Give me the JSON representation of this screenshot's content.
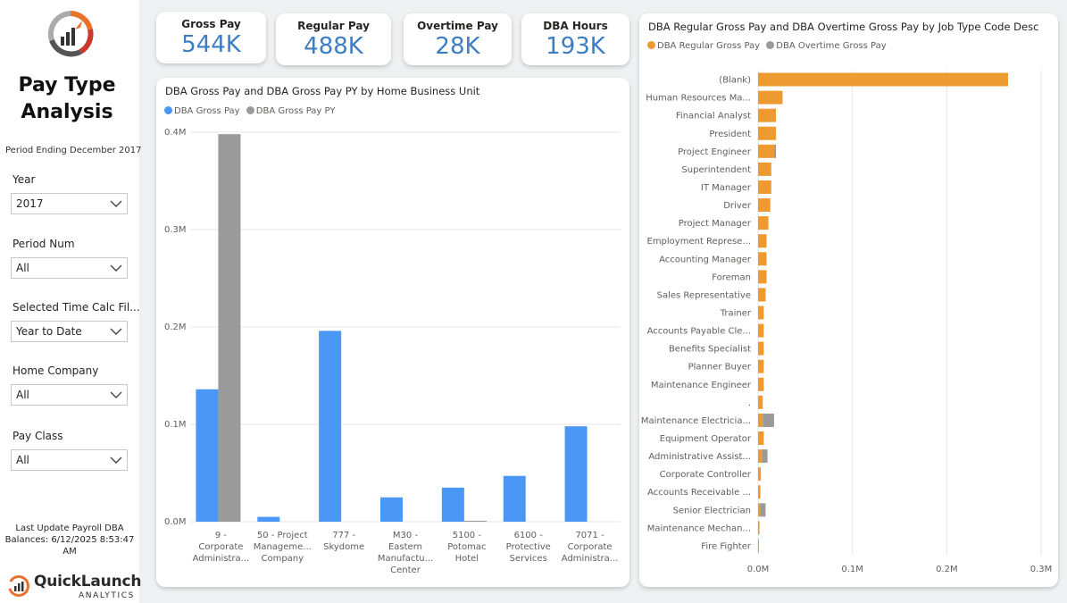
{
  "sidebar": {
    "title_line1": "Pay Type",
    "title_line2": "Analysis",
    "period": "Period Ending December 2017",
    "slicers": [
      {
        "label": "Year",
        "value": "2017"
      },
      {
        "label": "Period Num",
        "value": "All"
      },
      {
        "label": "Selected Time Calc Fil...",
        "value": "Year to Date"
      },
      {
        "label": "Home Company",
        "value": "All"
      },
      {
        "label": "Pay Class",
        "value": "All"
      }
    ],
    "last_update_line1": "Last Update Payroll DBA",
    "last_update_line2": "Balances: 6/12/2025 8:53:47 AM",
    "brand_name": "QuickLaunch",
    "brand_sub": "ANALYTICS"
  },
  "kpis": [
    {
      "label": "Gross Pay",
      "value": "544K"
    },
    {
      "label": "Regular Pay",
      "value": "488K"
    },
    {
      "label": "Overtime Pay",
      "value": "28K"
    },
    {
      "label": "DBA Hours",
      "value": "193K"
    }
  ],
  "colors": {
    "blue": "#4a97f5",
    "gray": "#9a9a9a",
    "orange": "#ed9a32",
    "kpi": "#3d7ec2"
  },
  "chart_data": [
    {
      "type": "bar",
      "title": "DBA Gross Pay and DBA Gross Pay PY by Home Business Unit",
      "categories": [
        [
          "9 -",
          "Corporate",
          "Administra..."
        ],
        [
          "50 - Project",
          "Manageme...",
          "Company"
        ],
        [
          "777 -",
          "Skydome"
        ],
        [
          "M30 -",
          "Eastern",
          "Manufactu...",
          "Center"
        ],
        [
          "5100 -",
          "Potomac",
          "Hotel"
        ],
        [
          "6100 -",
          "Protective",
          "Services"
        ],
        [
          "7071 -",
          "Corporate",
          "Administra..."
        ]
      ],
      "series": [
        {
          "name": "DBA Gross Pay",
          "color": "#4a97f5",
          "values": [
            136000,
            5000,
            196000,
            25000,
            35000,
            47000,
            98000
          ]
        },
        {
          "name": "DBA Gross Pay PY",
          "color": "#9a9a9a",
          "values": [
            398000,
            0,
            0,
            0,
            1000,
            0,
            0
          ]
        }
      ],
      "ylim": [
        0,
        400000
      ],
      "yticks": [
        "0.0M",
        "0.1M",
        "0.2M",
        "0.3M",
        "0.4M"
      ],
      "grid": true,
      "legend": "top-left"
    },
    {
      "type": "bar",
      "orientation": "horizontal",
      "stacked": true,
      "title": "DBA Regular Gross Pay and DBA Overtime Gross Pay  by Job Type Code Desc",
      "categories": [
        "(Blank)",
        "Human Resources Ma...",
        "Financial Analyst",
        "President",
        "Project Engineer",
        "Superintendent",
        "IT Manager",
        "Driver",
        "Project Manager",
        "Employment Represe...",
        "Accounting Manager",
        "Foreman",
        "Sales Representative",
        "Trainer",
        "Accounts Payable Cle...",
        "Benefits Specialist",
        "Planner Buyer",
        "Maintenance Engineer",
        ".",
        "Maintenance Electricia...",
        "Equipment Operator",
        "Administrative Assist...",
        "Corporate Controller",
        "Accounts Receivable ...",
        "Senior Electrician",
        "Maintenance Mechan...",
        "Fire Fighter"
      ],
      "series": [
        {
          "name": "DBA Regular Gross Pay",
          "color": "#ed9a32",
          "values": [
            265000,
            26000,
            19000,
            19000,
            17000,
            14000,
            14000,
            13000,
            11000,
            9000,
            9000,
            9000,
            8000,
            6000,
            6000,
            6000,
            6000,
            6000,
            5000,
            5000,
            6000,
            4000,
            3000,
            2500,
            2000,
            1500,
            1000
          ]
        },
        {
          "name": "DBA Overtime Gross Pay",
          "color": "#9a9a9a",
          "values": [
            0,
            0,
            0,
            0,
            2000,
            0,
            0,
            0,
            0,
            0,
            0,
            0,
            0,
            0,
            0,
            0,
            0,
            0,
            0,
            12000,
            0,
            6000,
            0,
            0,
            6000,
            0,
            0
          ]
        }
      ],
      "xlim": [
        0,
        300000
      ],
      "xticks": [
        "0.0M",
        "0.1M",
        "0.2M",
        "0.3M"
      ],
      "grid": true,
      "legend": "top-left"
    }
  ]
}
